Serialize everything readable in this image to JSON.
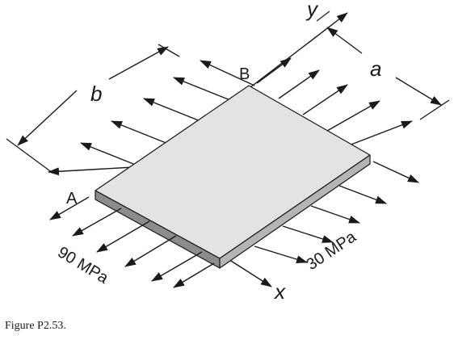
{
  "figure": {
    "labels": {
      "b": "b",
      "a": "a",
      "y": "y",
      "x": "x",
      "A": "A",
      "B": "B",
      "left_stress": "90 MPa",
      "right_stress": "30 MPa"
    },
    "colors": {
      "plate_top": "#e3e3e3",
      "plate_front": "#8c8c8c",
      "plate_side": "#b5b5b5",
      "ink": "#1a1a1a"
    }
  },
  "caption": "Figure P2.53."
}
